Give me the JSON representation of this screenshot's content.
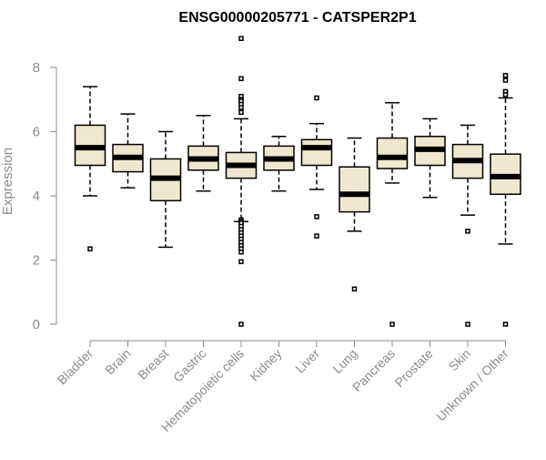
{
  "chart_data": {
    "type": "boxplot",
    "title": "ENSG00000205771 - CATSPER2P1",
    "xlabel": "",
    "ylabel": "Expression",
    "ylim": [
      0,
      8
    ],
    "yticks": [
      0,
      2,
      4,
      6,
      8
    ],
    "grid": false,
    "legend": "none",
    "box_fill": "#efe8d0",
    "categories": [
      "Bladder",
      "Brain",
      "Breast",
      "Gastric",
      "Hematopoietic cells",
      "Kidney",
      "Liver",
      "Lung",
      "Pancreas",
      "Prostate",
      "Skin",
      "Unknown / Other"
    ],
    "boxes": [
      {
        "whisker_low": 4.0,
        "q1": 4.95,
        "median": 5.5,
        "q3": 6.2,
        "whisker_high": 7.4,
        "outliers": [
          2.35
        ]
      },
      {
        "whisker_low": 4.25,
        "q1": 4.75,
        "median": 5.2,
        "q3": 5.6,
        "whisker_high": 6.55,
        "outliers": []
      },
      {
        "whisker_low": 2.4,
        "q1": 3.85,
        "median": 4.55,
        "q3": 5.15,
        "whisker_high": 6.0,
        "outliers": []
      },
      {
        "whisker_low": 4.15,
        "q1": 4.8,
        "median": 5.15,
        "q3": 5.55,
        "whisker_high": 6.5,
        "outliers": []
      },
      {
        "whisker_low": 3.2,
        "q1": 4.55,
        "median": 4.95,
        "q3": 5.35,
        "whisker_high": 6.4,
        "outliers": [
          8.9,
          7.65,
          7.1,
          7.0,
          6.95,
          6.85,
          6.75,
          6.6,
          3.25,
          3.2,
          3.15,
          3.05,
          2.95,
          2.85,
          2.75,
          2.65,
          2.55,
          2.45,
          2.35,
          2.25,
          1.95,
          0.0
        ]
      },
      {
        "whisker_low": 4.15,
        "q1": 4.8,
        "median": 5.15,
        "q3": 5.55,
        "whisker_high": 5.85,
        "outliers": []
      },
      {
        "whisker_low": 4.2,
        "q1": 4.95,
        "median": 5.5,
        "q3": 5.75,
        "whisker_high": 6.25,
        "outliers": [
          7.05,
          3.35,
          2.75
        ]
      },
      {
        "whisker_low": 2.9,
        "q1": 3.5,
        "median": 4.05,
        "q3": 4.9,
        "whisker_high": 5.8,
        "outliers": [
          1.1
        ]
      },
      {
        "whisker_low": 4.4,
        "q1": 4.85,
        "median": 5.2,
        "q3": 5.8,
        "whisker_high": 6.9,
        "outliers": [
          0.0
        ]
      },
      {
        "whisker_low": 3.95,
        "q1": 4.95,
        "median": 5.45,
        "q3": 5.85,
        "whisker_high": 6.4,
        "outliers": []
      },
      {
        "whisker_low": 3.4,
        "q1": 4.55,
        "median": 5.1,
        "q3": 5.6,
        "whisker_high": 6.2,
        "outliers": [
          2.9,
          0.0
        ]
      },
      {
        "whisker_low": 2.5,
        "q1": 4.05,
        "median": 4.6,
        "q3": 5.3,
        "whisker_high": 7.05,
        "outliers": [
          7.75,
          7.6,
          7.25,
          7.15,
          0.0
        ]
      }
    ]
  }
}
